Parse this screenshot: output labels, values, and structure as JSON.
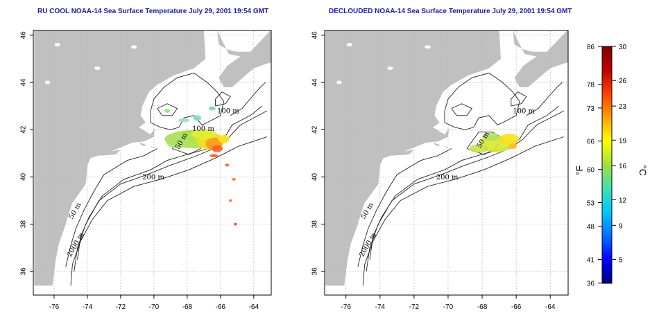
{
  "titles": {
    "left": "RU COOL NOAA-14 Sea Surface Temperature July 29, 2001 19:54 GMT",
    "right": "DECLOUDED NOAA-14 Sea Surface Temperature July 29, 2001 19:54 GMT"
  },
  "axes": {
    "lon_ticks": [
      "-76",
      "-74",
      "-72",
      "-70",
      "-68",
      "-66",
      "-64"
    ],
    "lat_ticks": [
      "36",
      "38",
      "40",
      "42",
      "44",
      "46"
    ]
  },
  "contour_labels": {
    "left": [
      "100 m",
      "100 m",
      "50 m",
      "200 m",
      "50 m",
      "2000 m"
    ],
    "right": [
      "100 m",
      "50 m",
      "200 m",
      "50 m",
      "2000 m"
    ]
  },
  "colorbar": {
    "fahrenheit_ticks": [
      "86",
      "78",
      "73",
      "66",
      "60",
      "53",
      "48",
      "41",
      "36"
    ],
    "celsius_ticks": [
      "30",
      "26",
      "23",
      "19",
      "16",
      "12",
      "9",
      "5"
    ],
    "fahrenheit_unit": "°F",
    "celsius_unit": "°C",
    "gradient_colors": [
      "#000080",
      "#0000ff",
      "#0070ff",
      "#00c8ff",
      "#40e0b0",
      "#a0e040",
      "#ffff00",
      "#ffa000",
      "#ff4000",
      "#c00000",
      "#800000"
    ]
  },
  "colors": {
    "land": "#c0c0c0",
    "title": "#1a1aa8",
    "grid": "#b8b8b8"
  }
}
